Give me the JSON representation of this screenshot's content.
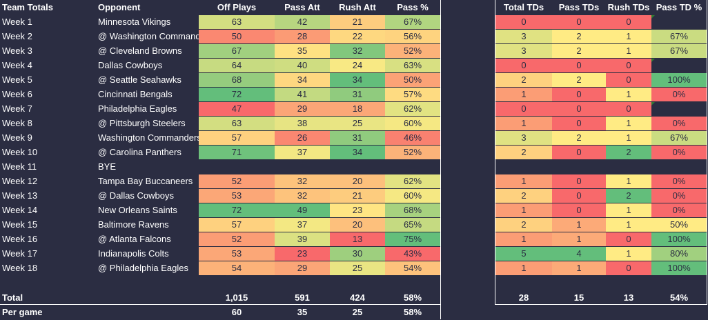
{
  "headers": {
    "label": "Team Totals",
    "opponent": "Opponent",
    "off_plays": "Off Plays",
    "pass_att": "Pass Att",
    "rush_att": "Rush Att",
    "pass_pct": "Pass %",
    "total_tds": "Total TDs",
    "pass_tds": "Pass TDs",
    "rush_tds": "Rush TDs",
    "pass_td_pct": "Pass TD %"
  },
  "rows": [
    {
      "week": "Week 1",
      "opponent": "Minnesota Vikings",
      "off": "63",
      "pass": "42",
      "rush": "21",
      "pct": "67%",
      "ttd": "0",
      "ptd": "0",
      "rtd": "0",
      "tdpct": ""
    },
    {
      "week": "Week 2",
      "opponent": "@ Washington Commanders",
      "off": "50",
      "pass": "28",
      "rush": "22",
      "pct": "56%",
      "ttd": "3",
      "ptd": "2",
      "rtd": "1",
      "tdpct": "67%"
    },
    {
      "week": "Week 3",
      "opponent": "@ Cleveland Browns",
      "off": "67",
      "pass": "35",
      "rush": "32",
      "pct": "52%",
      "ttd": "3",
      "ptd": "2",
      "rtd": "1",
      "tdpct": "67%"
    },
    {
      "week": "Week 4",
      "opponent": "Dallas Cowboys",
      "off": "64",
      "pass": "40",
      "rush": "24",
      "pct": "63%",
      "ttd": "0",
      "ptd": "0",
      "rtd": "0",
      "tdpct": ""
    },
    {
      "week": "Week 5",
      "opponent": "@ Seattle Seahawks",
      "off": "68",
      "pass": "34",
      "rush": "34",
      "pct": "50%",
      "ttd": "2",
      "ptd": "2",
      "rtd": "0",
      "tdpct": "100%"
    },
    {
      "week": "Week 6",
      "opponent": "Cincinnati Bengals",
      "off": "72",
      "pass": "41",
      "rush": "31",
      "pct": "57%",
      "ttd": "1",
      "ptd": "0",
      "rtd": "1",
      "tdpct": "0%"
    },
    {
      "week": "Week 7",
      "opponent": "Philadelphia Eagles",
      "off": "47",
      "pass": "29",
      "rush": "18",
      "pct": "62%",
      "ttd": "0",
      "ptd": "0",
      "rtd": "0",
      "tdpct": ""
    },
    {
      "week": "Week 8",
      "opponent": "@ Pittsburgh Steelers",
      "off": "63",
      "pass": "38",
      "rush": "25",
      "pct": "60%",
      "ttd": "1",
      "ptd": "0",
      "rtd": "1",
      "tdpct": "0%"
    },
    {
      "week": "Week 9",
      "opponent": "Washington Commanders",
      "off": "57",
      "pass": "26",
      "rush": "31",
      "pct": "46%",
      "ttd": "3",
      "ptd": "2",
      "rtd": "1",
      "tdpct": "67%"
    },
    {
      "week": "Week 10",
      "opponent": "@ Carolina Panthers",
      "off": "71",
      "pass": "37",
      "rush": "34",
      "pct": "52%",
      "ttd": "2",
      "ptd": "0",
      "rtd": "2",
      "tdpct": "0%"
    },
    {
      "week": "Week 11",
      "opponent": "BYE",
      "off": "",
      "pass": "",
      "rush": "",
      "pct": "",
      "ttd": "",
      "ptd": "",
      "rtd": "",
      "tdpct": ""
    },
    {
      "week": "Week 12",
      "opponent": "Tampa Bay Buccaneers",
      "off": "52",
      "pass": "32",
      "rush": "20",
      "pct": "62%",
      "ttd": "1",
      "ptd": "0",
      "rtd": "1",
      "tdpct": "0%"
    },
    {
      "week": "Week 13",
      "opponent": "@ Dallas Cowboys",
      "off": "53",
      "pass": "32",
      "rush": "21",
      "pct": "60%",
      "ttd": "2",
      "ptd": "0",
      "rtd": "2",
      "tdpct": "0%"
    },
    {
      "week": "Week 14",
      "opponent": "New Orleans Saints",
      "off": "72",
      "pass": "49",
      "rush": "23",
      "pct": "68%",
      "ttd": "1",
      "ptd": "0",
      "rtd": "1",
      "tdpct": "0%"
    },
    {
      "week": "Week 15",
      "opponent": "Baltimore Ravens",
      "off": "57",
      "pass": "37",
      "rush": "20",
      "pct": "65%",
      "ttd": "2",
      "ptd": "1",
      "rtd": "1",
      "tdpct": "50%"
    },
    {
      "week": "Week 16",
      "opponent": "@ Atlanta Falcons",
      "off": "52",
      "pass": "39",
      "rush": "13",
      "pct": "75%",
      "ttd": "1",
      "ptd": "1",
      "rtd": "0",
      "tdpct": "100%"
    },
    {
      "week": "Week 17",
      "opponent": "Indianapolis Colts",
      "off": "53",
      "pass": "23",
      "rush": "30",
      "pct": "43%",
      "ttd": "5",
      "ptd": "4",
      "rtd": "1",
      "tdpct": "80%"
    },
    {
      "week": "Week 18",
      "opponent": "@ Philadelphia Eagles",
      "off": "54",
      "pass": "29",
      "rush": "25",
      "pct": "54%",
      "ttd": "1",
      "ptd": "1",
      "rtd": "0",
      "tdpct": "100%"
    }
  ],
  "totals": {
    "label": "Total",
    "off": "1,015",
    "pass": "591",
    "rush": "424",
    "pct": "58%",
    "ttd": "28",
    "ptd": "15",
    "rtd": "13",
    "tdpct": "54%"
  },
  "per_game": {
    "label": "Per game",
    "off": "60",
    "pass": "35",
    "rush": "25",
    "pct": "58%"
  },
  "scale_colors": {
    "low": "#f8696b",
    "mid": "#ffeb84",
    "high": "#63be7b"
  },
  "background": "#2b2d42"
}
